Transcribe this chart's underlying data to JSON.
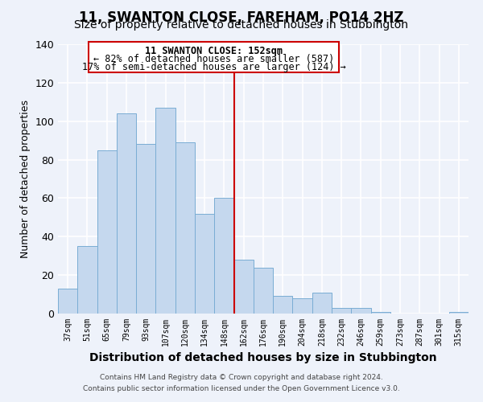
{
  "title": "11, SWANTON CLOSE, FAREHAM, PO14 2HZ",
  "subtitle": "Size of property relative to detached houses in Stubbington",
  "xlabel": "Distribution of detached houses by size in Stubbington",
  "ylabel": "Number of detached properties",
  "bar_labels": [
    "37sqm",
    "51sqm",
    "65sqm",
    "79sqm",
    "93sqm",
    "107sqm",
    "120sqm",
    "134sqm",
    "148sqm",
    "162sqm",
    "176sqm",
    "190sqm",
    "204sqm",
    "218sqm",
    "232sqm",
    "246sqm",
    "259sqm",
    "273sqm",
    "287sqm",
    "301sqm",
    "315sqm"
  ],
  "bar_values": [
    13,
    35,
    85,
    104,
    88,
    107,
    89,
    52,
    60,
    28,
    24,
    9,
    8,
    11,
    3,
    3,
    1,
    0,
    0,
    0,
    1
  ],
  "bar_color": "#c5d8ee",
  "bar_edge_color": "#7aadd4",
  "vline_x": 8.5,
  "vline_color": "#cc0000",
  "ylim": [
    0,
    140
  ],
  "yticks": [
    0,
    20,
    40,
    60,
    80,
    100,
    120,
    140
  ],
  "annotation_title": "11 SWANTON CLOSE: 152sqm",
  "annotation_line1": "← 82% of detached houses are smaller (587)",
  "annotation_line2": "17% of semi-detached houses are larger (124) →",
  "annotation_box_color": "#ffffff",
  "annotation_box_edge": "#cc0000",
  "footer1": "Contains HM Land Registry data © Crown copyright and database right 2024.",
  "footer2": "Contains public sector information licensed under the Open Government Licence v3.0.",
  "background_color": "#eef2fa",
  "grid_color": "#ffffff",
  "title_fontsize": 12,
  "subtitle_fontsize": 10
}
